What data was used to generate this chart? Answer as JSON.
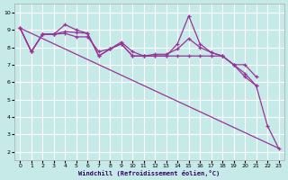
{
  "xlabel": "Windchill (Refroidissement éolien,°C)",
  "bg_color": "#c5eae8",
  "grid_color": "#ffffff",
  "line_color": "#993399",
  "xlim": [
    -0.5,
    23.5
  ],
  "ylim": [
    1.5,
    10.5
  ],
  "xticks": [
    0,
    1,
    2,
    3,
    4,
    5,
    6,
    7,
    8,
    9,
    10,
    11,
    12,
    13,
    14,
    15,
    16,
    17,
    18,
    19,
    20,
    21,
    22,
    23
  ],
  "yticks": [
    2,
    3,
    4,
    5,
    6,
    7,
    8,
    9,
    10
  ],
  "line1_x": [
    0,
    1,
    2,
    3,
    4,
    5,
    6,
    7,
    8,
    9,
    10,
    11,
    12,
    13,
    14,
    15,
    16,
    17,
    18,
    19,
    20,
    21
  ],
  "line1_y": [
    9.1,
    7.75,
    8.75,
    8.75,
    8.9,
    8.85,
    8.8,
    7.5,
    7.9,
    8.2,
    7.5,
    7.5,
    7.5,
    7.5,
    7.5,
    7.5,
    7.5,
    7.5,
    7.5,
    7.0,
    7.0,
    6.3
  ],
  "line2_x": [
    0,
    1,
    2,
    3,
    4,
    5,
    6,
    7,
    8,
    9,
    10,
    11,
    12,
    13,
    14,
    15,
    16,
    17,
    18,
    19,
    20,
    21,
    22,
    23
  ],
  "line2_y": [
    9.1,
    7.75,
    8.75,
    8.75,
    9.3,
    9.0,
    8.8,
    7.5,
    7.9,
    8.2,
    7.5,
    7.5,
    7.5,
    7.5,
    8.2,
    9.8,
    8.2,
    7.7,
    7.5,
    7.0,
    6.3,
    5.8,
    3.5,
    2.2
  ],
  "line3_x": [
    0,
    1,
    2,
    3,
    4,
    5,
    6,
    7,
    8,
    9,
    10,
    11,
    12,
    13,
    14,
    15,
    16,
    17,
    18,
    19,
    20,
    21
  ],
  "line3_y": [
    9.1,
    7.75,
    8.75,
    8.75,
    8.8,
    8.6,
    8.6,
    7.75,
    7.9,
    8.3,
    7.75,
    7.5,
    7.6,
    7.6,
    7.9,
    8.5,
    8.0,
    7.7,
    7.5,
    7.0,
    6.5,
    5.8
  ],
  "line4_x": [
    0,
    23
  ],
  "line4_y": [
    9.1,
    2.2
  ]
}
